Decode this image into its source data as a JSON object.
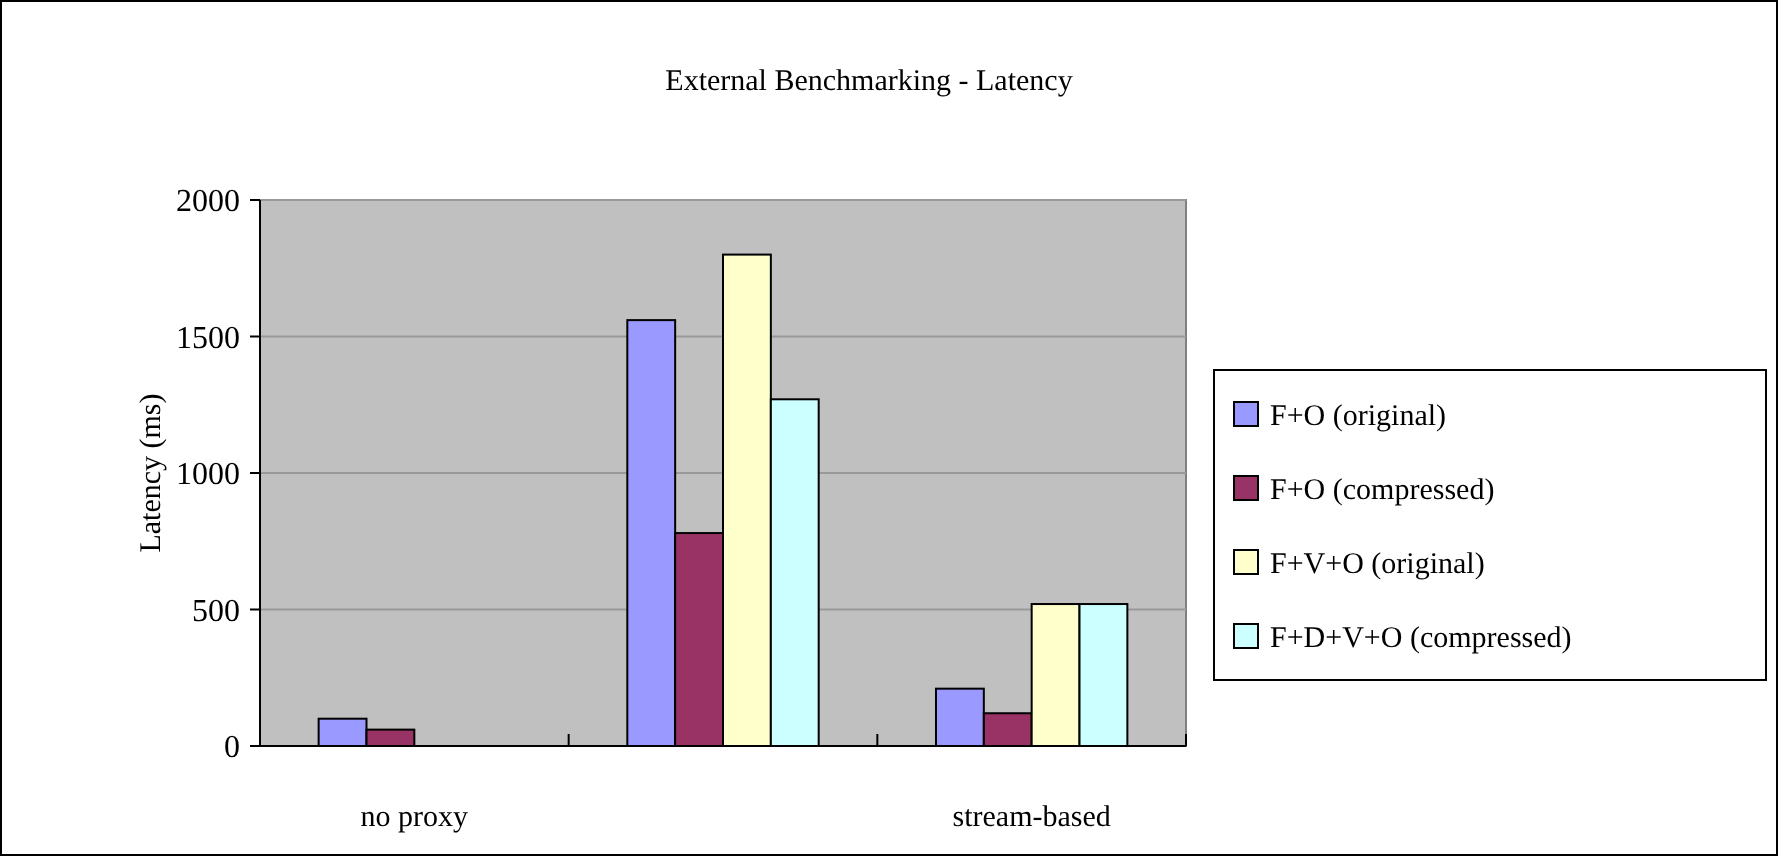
{
  "chart_data": {
    "type": "bar",
    "title": "External Benchmarking - Latency",
    "ylabel": "Latency (ms)",
    "categories": [
      "no proxy",
      null,
      "stream-based"
    ],
    "series": [
      {
        "name": "F+O (original)",
        "color": "#9999ff",
        "values": [
          100,
          1560,
          210
        ]
      },
      {
        "name": "F+O (compressed)",
        "color": "#993366",
        "values": [
          60,
          780,
          120
        ]
      },
      {
        "name": "F+V+O (original)",
        "color": "#ffffcc",
        "values": [
          null,
          1800,
          520
        ]
      },
      {
        "name": "F+D+V+O (compressed)",
        "color": "#ccffff",
        "values": [
          null,
          1270,
          520
        ]
      }
    ],
    "ylim": [
      0,
      2000
    ],
    "yticks": [
      0,
      500,
      1000,
      1500,
      2000
    ],
    "grid": "y",
    "legend": "right"
  }
}
